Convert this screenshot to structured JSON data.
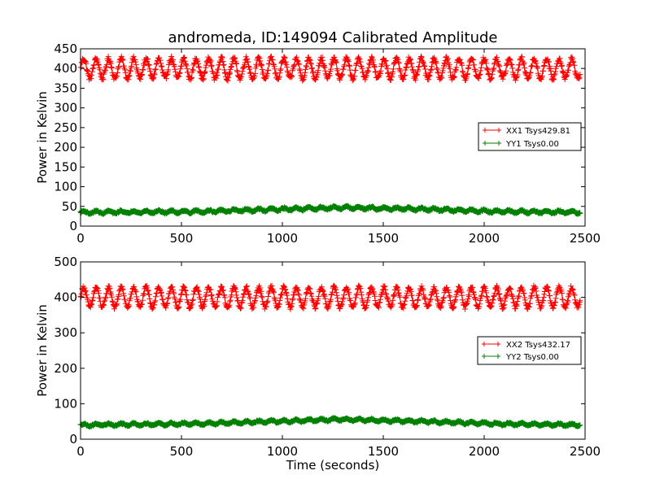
{
  "chart_data": [
    {
      "type": "line",
      "title": "andromeda, ID:149094 Calibrated Amplitude",
      "xlabel": "",
      "ylabel": "Power in Kelvin",
      "xlim": [
        0,
        2500
      ],
      "ylim": [
        0,
        450
      ],
      "xticks": [
        "0",
        "500",
        "1000",
        "1500",
        "2000",
        "2500"
      ],
      "yticks": [
        "0",
        "50",
        "100",
        "150",
        "200",
        "250",
        "300",
        "350",
        "400",
        "450"
      ],
      "legend_position": "center-right",
      "series": [
        {
          "name": "XX1 Tsys429.81",
          "color": "#ff0000",
          "marker": "+",
          "baseline": 400,
          "amplitude": 25,
          "period": 62,
          "noise": 6,
          "trend": [
            [
              0,
              0
            ],
            [
              2500,
              0
            ]
          ]
        },
        {
          "name": "YY1 Tsys0.00",
          "color": "#008000",
          "marker": "+",
          "baseline": 36,
          "amplitude": 3,
          "period": 62,
          "noise": 2,
          "trend": [
            [
              0,
              -1
            ],
            [
              600,
              1
            ],
            [
              1300,
              11
            ],
            [
              1700,
              7
            ],
            [
              2100,
              1
            ],
            [
              2500,
              -1
            ]
          ]
        }
      ]
    },
    {
      "type": "line",
      "title": "",
      "xlabel": "Time (seconds)",
      "ylabel": "Power in Kelvin",
      "xlim": [
        0,
        2500
      ],
      "ylim": [
        0,
        500
      ],
      "xticks": [
        "0",
        "500",
        "1000",
        "1500",
        "2000",
        "2500"
      ],
      "yticks": [
        "0",
        "100",
        "200",
        "300",
        "400",
        "500"
      ],
      "legend_position": "center-right",
      "series": [
        {
          "name": "XX2 Tsys432.17",
          "color": "#ff0000",
          "marker": "+",
          "baseline": 400,
          "amplitude": 28,
          "period": 62,
          "noise": 6,
          "trend": [
            [
              0,
              0
            ],
            [
              2500,
              0
            ]
          ]
        },
        {
          "name": "YY2 Tsys0.00",
          "color": "#008000",
          "marker": "+",
          "baseline": 40,
          "amplitude": 3,
          "period": 62,
          "noise": 2,
          "trend": [
            [
              0,
              0
            ],
            [
              600,
              4
            ],
            [
              1300,
              16
            ],
            [
              1700,
              10
            ],
            [
              2100,
              3
            ],
            [
              2500,
              0
            ]
          ]
        }
      ]
    }
  ]
}
